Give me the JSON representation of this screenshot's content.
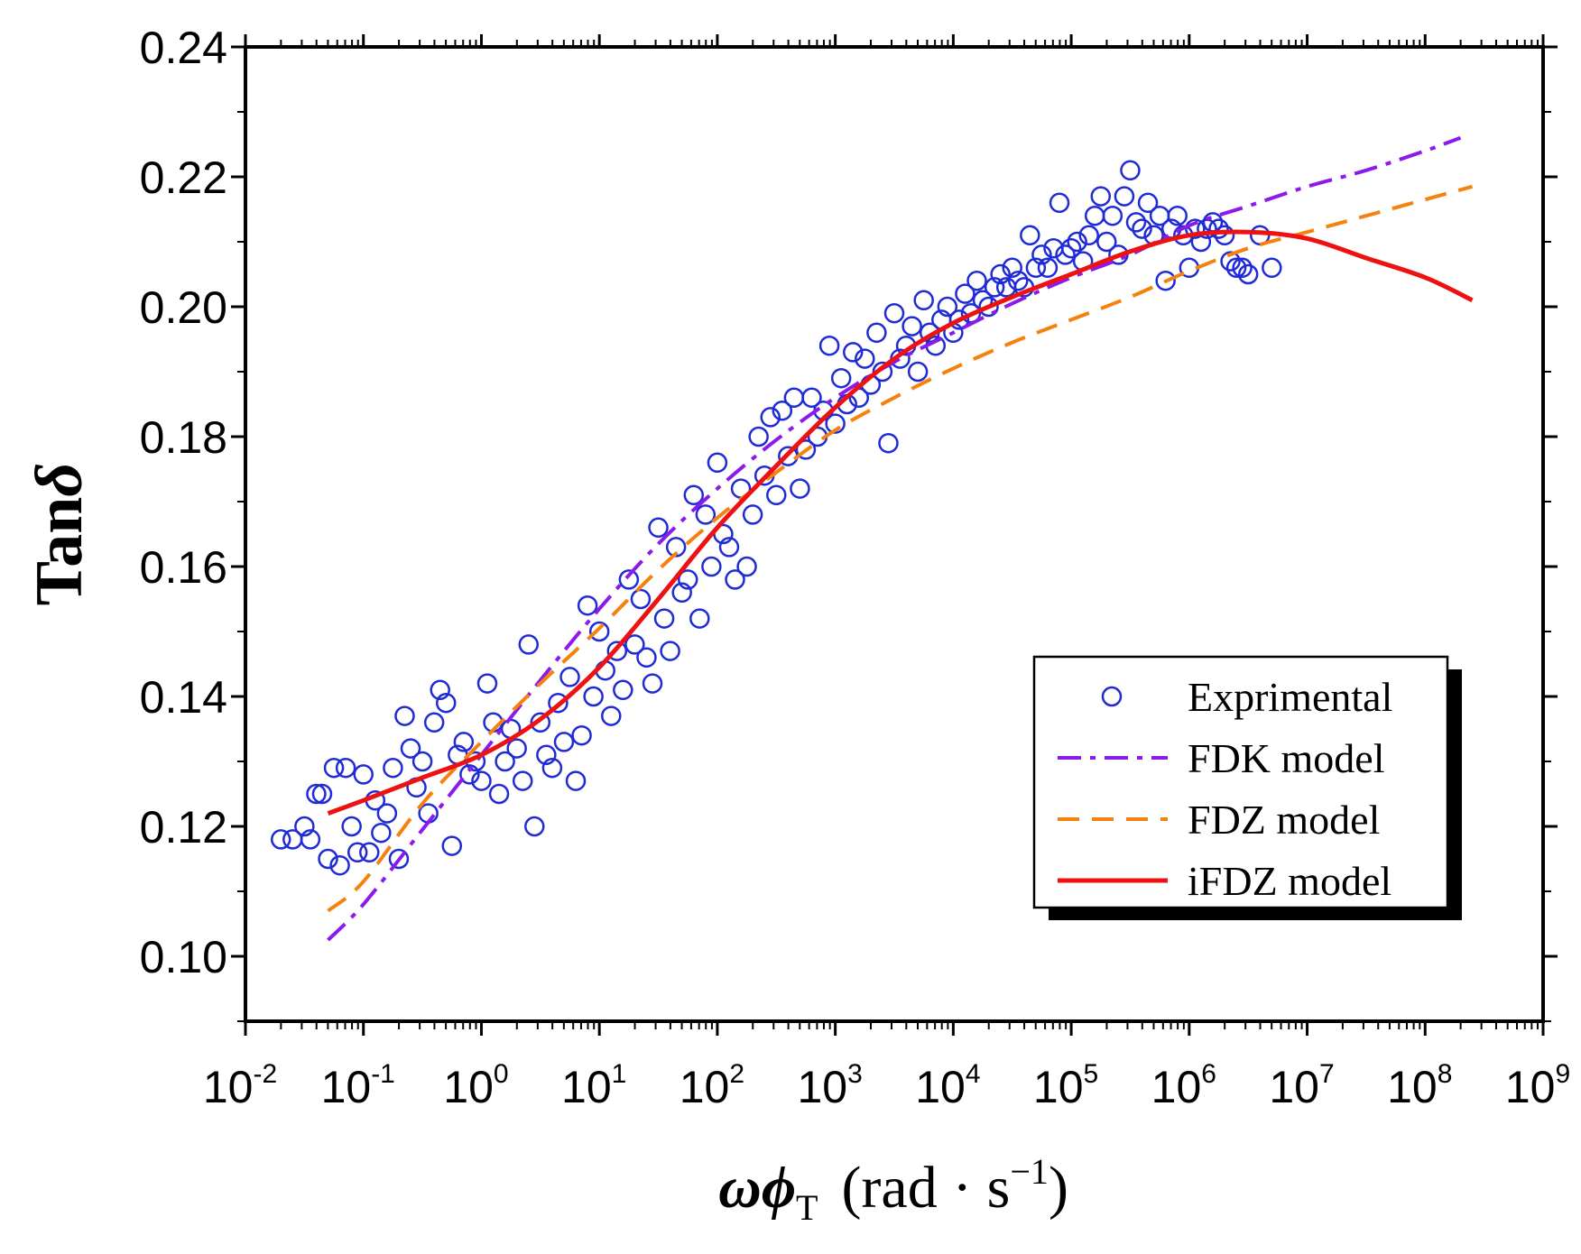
{
  "chart_data": {
    "type": "scatter",
    "title": "",
    "xlabel": {
      "omega": "ω",
      "phi": "ϕ",
      "sub": "T",
      "units": "(rad · s",
      "exp": "−1",
      "close": ")"
    },
    "ylabel": {
      "main": "Tan",
      "symbol": "δ"
    },
    "x_scale": "log",
    "xlim": [
      0.01,
      1000000000
    ],
    "ylim": [
      0.09,
      0.24
    ],
    "x_ticks": [
      {
        "base": "10",
        "exp": "-2"
      },
      {
        "base": "10",
        "exp": "-1"
      },
      {
        "base": "10",
        "exp": "0"
      },
      {
        "base": "10",
        "exp": "1"
      },
      {
        "base": "10",
        "exp": "2"
      },
      {
        "base": "10",
        "exp": "3"
      },
      {
        "base": "10",
        "exp": "4"
      },
      {
        "base": "10",
        "exp": "5"
      },
      {
        "base": "10",
        "exp": "6"
      },
      {
        "base": "10",
        "exp": "7"
      },
      {
        "base": "10",
        "exp": "8"
      },
      {
        "base": "10",
        "exp": "9"
      }
    ],
    "y_ticks": [
      "0.10",
      "0.12",
      "0.14",
      "0.16",
      "0.18",
      "0.20",
      "0.22",
      "0.24"
    ],
    "colors": {
      "exp": "#1f2bd6",
      "fdk": "#8b1aeb",
      "fdz": "#f5820e",
      "ifdz": "#ee1111"
    },
    "legend": {
      "position": "lower-right",
      "entries": [
        {
          "key": "exp",
          "label": "Exprimental"
        },
        {
          "key": "fdk",
          "label": "FDK model"
        },
        {
          "key": "fdz",
          "label": "FDZ model"
        },
        {
          "key": "ifdz",
          "label": "iFDZ model"
        }
      ]
    },
    "series": [
      {
        "key": "fdk",
        "name": "FDK model",
        "style": "dash-dot",
        "x": [
          -1.3,
          -1,
          -0.5,
          0,
          0.5,
          1,
          1.5,
          2,
          2.5,
          3,
          3.5,
          4,
          4.5,
          5,
          5.5,
          6,
          6.5,
          7,
          7.5,
          8,
          8.3
        ],
        "y": [
          0.1025,
          0.108,
          0.1195,
          0.131,
          0.1425,
          0.1535,
          0.1635,
          0.172,
          0.1795,
          0.186,
          0.1915,
          0.196,
          0.2005,
          0.2045,
          0.208,
          0.2125,
          0.2155,
          0.2185,
          0.221,
          0.224,
          0.226
        ]
      },
      {
        "key": "fdz",
        "name": "FDZ model",
        "style": "dashed",
        "x": [
          -1.3,
          -1,
          -0.5,
          0,
          0.5,
          1,
          1.5,
          2,
          2.5,
          3,
          3.5,
          4,
          4.5,
          5,
          5.5,
          6,
          6.5,
          7,
          7.5,
          8,
          8.4
        ],
        "y": [
          0.107,
          0.1115,
          0.1235,
          0.133,
          0.142,
          0.1505,
          0.1595,
          0.1675,
          0.1745,
          0.181,
          0.186,
          0.1905,
          0.1945,
          0.198,
          0.2015,
          0.2055,
          0.209,
          0.2115,
          0.214,
          0.2165,
          0.2185
        ]
      },
      {
        "key": "ifdz",
        "name": "iFDZ model",
        "style": "solid",
        "x": [
          -1.3,
          -1,
          -0.5,
          0,
          0.5,
          1,
          1.5,
          2,
          2.5,
          3,
          3.5,
          4,
          4.5,
          5,
          5.5,
          6,
          6.5,
          7,
          7.5,
          8,
          8.4
        ],
        "y": [
          0.122,
          0.124,
          0.1275,
          0.131,
          0.1365,
          0.1445,
          0.155,
          0.166,
          0.1755,
          0.1845,
          0.192,
          0.1975,
          0.2015,
          0.205,
          0.2085,
          0.211,
          0.2115,
          0.2105,
          0.2075,
          0.2045,
          0.201
        ]
      }
    ],
    "scatter": {
      "key": "exp",
      "name": "Exprimental",
      "points": [
        [
          -1.7,
          0.118
        ],
        [
          -1.6,
          0.118
        ],
        [
          -1.5,
          0.12
        ],
        [
          -1.45,
          0.118
        ],
        [
          -1.4,
          0.125
        ],
        [
          -1.35,
          0.125
        ],
        [
          -1.3,
          0.115
        ],
        [
          -1.25,
          0.129
        ],
        [
          -1.2,
          0.114
        ],
        [
          -1.15,
          0.129
        ],
        [
          -1.1,
          0.12
        ],
        [
          -1.05,
          0.116
        ],
        [
          -1.0,
          0.128
        ],
        [
          -0.95,
          0.116
        ],
        [
          -0.9,
          0.124
        ],
        [
          -0.85,
          0.119
        ],
        [
          -0.8,
          0.122
        ],
        [
          -0.75,
          0.129
        ],
        [
          -0.7,
          0.115
        ],
        [
          -0.65,
          0.137
        ],
        [
          -0.6,
          0.132
        ],
        [
          -0.55,
          0.126
        ],
        [
          -0.5,
          0.13
        ],
        [
          -0.45,
          0.122
        ],
        [
          -0.4,
          0.136
        ],
        [
          -0.35,
          0.141
        ],
        [
          -0.3,
          0.139
        ],
        [
          -0.25,
          0.117
        ],
        [
          -0.2,
          0.131
        ],
        [
          -0.15,
          0.133
        ],
        [
          -0.1,
          0.128
        ],
        [
          -0.05,
          0.13
        ],
        [
          0.0,
          0.127
        ],
        [
          0.05,
          0.142
        ],
        [
          0.1,
          0.136
        ],
        [
          0.15,
          0.125
        ],
        [
          0.2,
          0.13
        ],
        [
          0.25,
          0.135
        ],
        [
          0.3,
          0.132
        ],
        [
          0.35,
          0.127
        ],
        [
          0.4,
          0.148
        ],
        [
          0.45,
          0.12
        ],
        [
          0.5,
          0.136
        ],
        [
          0.55,
          0.131
        ],
        [
          0.6,
          0.129
        ],
        [
          0.65,
          0.139
        ],
        [
          0.7,
          0.133
        ],
        [
          0.75,
          0.143
        ],
        [
          0.8,
          0.127
        ],
        [
          0.85,
          0.134
        ],
        [
          0.9,
          0.154
        ],
        [
          0.95,
          0.14
        ],
        [
          1.0,
          0.15
        ],
        [
          1.05,
          0.144
        ],
        [
          1.1,
          0.137
        ],
        [
          1.15,
          0.147
        ],
        [
          1.2,
          0.141
        ],
        [
          1.25,
          0.158
        ],
        [
          1.3,
          0.148
        ],
        [
          1.35,
          0.155
        ],
        [
          1.4,
          0.146
        ],
        [
          1.45,
          0.142
        ],
        [
          1.5,
          0.166
        ],
        [
          1.55,
          0.152
        ],
        [
          1.6,
          0.147
        ],
        [
          1.65,
          0.163
        ],
        [
          1.7,
          0.156
        ],
        [
          1.75,
          0.158
        ],
        [
          1.8,
          0.171
        ],
        [
          1.85,
          0.152
        ],
        [
          1.9,
          0.168
        ],
        [
          1.95,
          0.16
        ],
        [
          2.0,
          0.176
        ],
        [
          2.05,
          0.165
        ],
        [
          2.1,
          0.163
        ],
        [
          2.15,
          0.158
        ],
        [
          2.2,
          0.172
        ],
        [
          2.25,
          0.16
        ],
        [
          2.3,
          0.168
        ],
        [
          2.35,
          0.18
        ],
        [
          2.4,
          0.174
        ],
        [
          2.45,
          0.183
        ],
        [
          2.5,
          0.171
        ],
        [
          2.55,
          0.184
        ],
        [
          2.6,
          0.177
        ],
        [
          2.65,
          0.186
        ],
        [
          2.7,
          0.172
        ],
        [
          2.75,
          0.178
        ],
        [
          2.8,
          0.186
        ],
        [
          2.85,
          0.18
        ],
        [
          2.9,
          0.184
        ],
        [
          2.95,
          0.194
        ],
        [
          3.0,
          0.182
        ],
        [
          3.05,
          0.189
        ],
        [
          3.1,
          0.185
        ],
        [
          3.15,
          0.193
        ],
        [
          3.2,
          0.186
        ],
        [
          3.25,
          0.192
        ],
        [
          3.3,
          0.188
        ],
        [
          3.35,
          0.196
        ],
        [
          3.4,
          0.19
        ],
        [
          3.45,
          0.179
        ],
        [
          3.5,
          0.199
        ],
        [
          3.55,
          0.192
        ],
        [
          3.6,
          0.194
        ],
        [
          3.65,
          0.197
        ],
        [
          3.7,
          0.19
        ],
        [
          3.75,
          0.201
        ],
        [
          3.8,
          0.196
        ],
        [
          3.85,
          0.194
        ],
        [
          3.9,
          0.198
        ],
        [
          3.95,
          0.2
        ],
        [
          4.0,
          0.196
        ],
        [
          4.05,
          0.198
        ],
        [
          4.1,
          0.202
        ],
        [
          4.15,
          0.199
        ],
        [
          4.2,
          0.204
        ],
        [
          4.25,
          0.201
        ],
        [
          4.3,
          0.2
        ],
        [
          4.35,
          0.203
        ],
        [
          4.4,
          0.205
        ],
        [
          4.45,
          0.203
        ],
        [
          4.5,
          0.206
        ],
        [
          4.55,
          0.204
        ],
        [
          4.6,
          0.203
        ],
        [
          4.65,
          0.211
        ],
        [
          4.7,
          0.206
        ],
        [
          4.75,
          0.208
        ],
        [
          4.8,
          0.206
        ],
        [
          4.85,
          0.209
        ],
        [
          4.9,
          0.216
        ],
        [
          4.95,
          0.208
        ],
        [
          5.0,
          0.209
        ],
        [
          5.05,
          0.21
        ],
        [
          5.1,
          0.207
        ],
        [
          5.15,
          0.211
        ],
        [
          5.2,
          0.214
        ],
        [
          5.25,
          0.217
        ],
        [
          5.3,
          0.21
        ],
        [
          5.35,
          0.214
        ],
        [
          5.4,
          0.208
        ],
        [
          5.45,
          0.217
        ],
        [
          5.5,
          0.221
        ],
        [
          5.55,
          0.213
        ],
        [
          5.6,
          0.212
        ],
        [
          5.65,
          0.216
        ],
        [
          5.7,
          0.211
        ],
        [
          5.75,
          0.214
        ],
        [
          5.8,
          0.204
        ],
        [
          5.85,
          0.212
        ],
        [
          5.9,
          0.214
        ],
        [
          5.95,
          0.211
        ],
        [
          6.0,
          0.206
        ],
        [
          6.05,
          0.212
        ],
        [
          6.1,
          0.21
        ],
        [
          6.15,
          0.212
        ],
        [
          6.2,
          0.213
        ],
        [
          6.25,
          0.212
        ],
        [
          6.3,
          0.211
        ],
        [
          6.35,
          0.207
        ],
        [
          6.4,
          0.206
        ],
        [
          6.45,
          0.206
        ],
        [
          6.5,
          0.205
        ],
        [
          6.6,
          0.211
        ],
        [
          6.7,
          0.206
        ]
      ]
    }
  }
}
